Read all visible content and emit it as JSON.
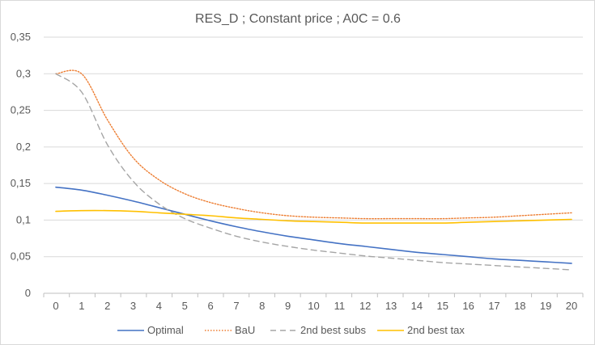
{
  "chart_data": {
    "type": "line",
    "title": "RES_D ; Constant price ; A0C = 0.6",
    "xlabel": "",
    "ylabel": "",
    "x": [
      0,
      1,
      2,
      3,
      4,
      5,
      6,
      7,
      8,
      9,
      10,
      11,
      12,
      13,
      14,
      15,
      16,
      17,
      18,
      19,
      20
    ],
    "x_tick_labels": [
      "0",
      "1",
      "2",
      "3",
      "4",
      "5",
      "6",
      "7",
      "8",
      "9",
      "10",
      "11",
      "12",
      "13",
      "14",
      "15",
      "16",
      "17",
      "18",
      "19",
      "20"
    ],
    "ylim": [
      0,
      0.35
    ],
    "y_ticks": [
      0,
      0.05,
      0.1,
      0.15,
      0.2,
      0.25,
      0.3,
      0.35
    ],
    "y_tick_labels": [
      "0",
      "0,05",
      "0,1",
      "0,15",
      "0,2",
      "0,25",
      "0,3",
      "0,35"
    ],
    "grid": "horizontal",
    "legend_position": "bottom",
    "series": [
      {
        "name": "Optimal",
        "color": "#4472c4",
        "dash": "solid",
        "values": [
          0.145,
          0.141,
          0.134,
          0.126,
          0.117,
          0.108,
          0.099,
          0.091,
          0.084,
          0.078,
          0.073,
          0.068,
          0.064,
          0.06,
          0.056,
          0.053,
          0.05,
          0.047,
          0.045,
          0.043,
          0.041
        ]
      },
      {
        "name": "BaU",
        "color": "#ed7d31",
        "dash": "dotted",
        "values": [
          0.3,
          0.3,
          0.237,
          0.185,
          0.155,
          0.136,
          0.124,
          0.116,
          0.11,
          0.106,
          0.104,
          0.103,
          0.102,
          0.102,
          0.102,
          0.102,
          0.103,
          0.104,
          0.106,
          0.108,
          0.11
        ]
      },
      {
        "name": "2nd best subs",
        "color": "#a5a5a5",
        "dash": "dashed",
        "values": [
          0.3,
          0.275,
          0.203,
          0.153,
          0.122,
          0.102,
          0.089,
          0.078,
          0.07,
          0.064,
          0.059,
          0.055,
          0.051,
          0.048,
          0.045,
          0.042,
          0.04,
          0.038,
          0.036,
          0.034,
          0.032
        ]
      },
      {
        "name": "2nd best tax",
        "color": "#ffc000",
        "dash": "solid",
        "values": [
          0.112,
          0.113,
          0.113,
          0.112,
          0.11,
          0.108,
          0.106,
          0.103,
          0.101,
          0.099,
          0.098,
          0.097,
          0.096,
          0.096,
          0.096,
          0.096,
          0.097,
          0.098,
          0.099,
          0.1,
          0.101
        ]
      }
    ]
  }
}
